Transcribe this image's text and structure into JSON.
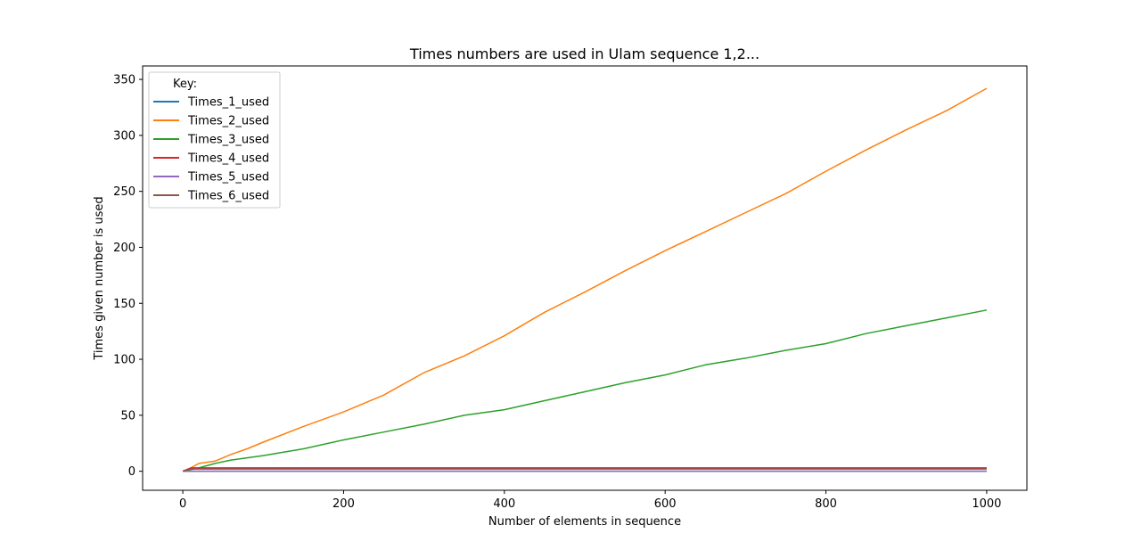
{
  "chart_data": {
    "type": "line",
    "title": "Times numbers are used in Ulam sequence 1,2...",
    "xlabel": "Number of elements in sequence",
    "ylabel": "Times given number is used",
    "xlim": [
      -50,
      1050
    ],
    "ylim": [
      -17,
      362
    ],
    "xticks": [
      0,
      200,
      400,
      600,
      800,
      1000
    ],
    "yticks": [
      0,
      50,
      100,
      150,
      200,
      250,
      300,
      350
    ],
    "legend": {
      "title": "Key:",
      "placement": "top-left"
    },
    "grid": false,
    "series": [
      {
        "name": "Times_1_used",
        "color": "#1f77b4",
        "x": [
          0,
          1000
        ],
        "y": [
          0,
          0
        ]
      },
      {
        "name": "Times_2_used",
        "color": "#ff7f0e",
        "x": [
          0,
          10,
          20,
          40,
          60,
          80,
          100,
          150,
          200,
          250,
          300,
          350,
          400,
          450,
          500,
          550,
          600,
          650,
          700,
          750,
          800,
          850,
          900,
          950,
          1000
        ],
        "y": [
          0,
          3,
          7,
          9,
          15,
          20,
          26,
          40,
          53,
          68,
          88,
          103,
          121,
          142,
          160,
          179,
          197,
          214,
          231,
          248,
          268,
          287,
          305,
          322,
          342
        ]
      },
      {
        "name": "Times_3_used",
        "color": "#2ca02c",
        "x": [
          0,
          20,
          40,
          60,
          80,
          100,
          150,
          200,
          250,
          300,
          350,
          400,
          450,
          500,
          550,
          600,
          650,
          700,
          750,
          800,
          850,
          900,
          950,
          1000
        ],
        "y": [
          0,
          3,
          7,
          10,
          12,
          14,
          20,
          28,
          35,
          42,
          50,
          55,
          63,
          71,
          79,
          86,
          95,
          101,
          108,
          114,
          123,
          130,
          137,
          144
        ]
      },
      {
        "name": "Times_4_used",
        "color": "#d62728",
        "x": [
          0,
          10,
          1000
        ],
        "y": [
          0,
          3,
          3
        ]
      },
      {
        "name": "Times_5_used",
        "color": "#9467bd",
        "x": [
          0,
          1000
        ],
        "y": [
          0,
          0
        ]
      },
      {
        "name": "Times_6_used",
        "color": "#8c564b",
        "x": [
          0,
          10,
          1000
        ],
        "y": [
          0,
          2,
          2
        ]
      }
    ]
  }
}
